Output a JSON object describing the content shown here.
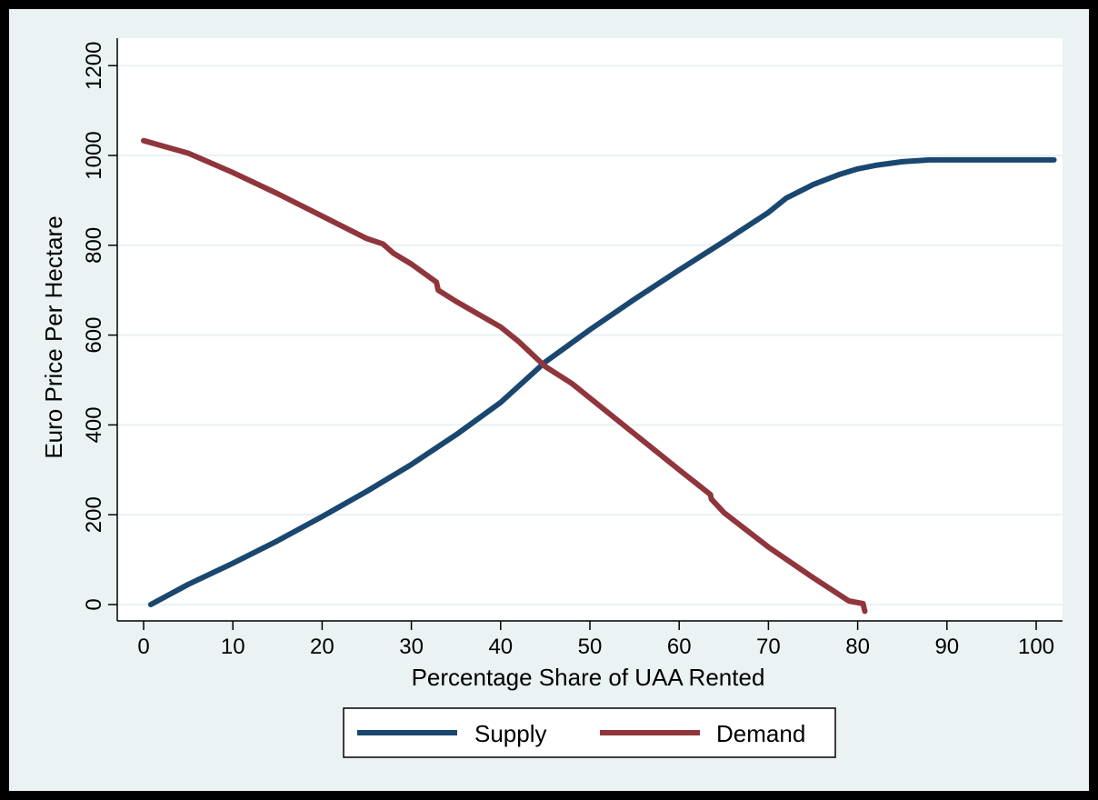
{
  "chart_data": {
    "type": "line",
    "title": "",
    "xlabel": "Percentage Share of UAA Rented",
    "ylabel": "Euro Price Per Hectare",
    "xlim": [
      0,
      102
    ],
    "ylim": [
      0,
      1200
    ],
    "xticks": [
      "0",
      "10",
      "20",
      "30",
      "40",
      "50",
      "60",
      "70",
      "80",
      "90",
      "100"
    ],
    "yticks": [
      "0",
      "200",
      "400",
      "600",
      "800",
      "1000",
      "1200"
    ],
    "grid": "horizontal",
    "legend_position": "bottom",
    "colors": {
      "supply": "#1a476f",
      "demand": "#90353b",
      "plot_bg": "#ffffff",
      "outer_bg": "#eaf2f3",
      "grid": "#eaf2f3"
    },
    "series": [
      {
        "name": "Supply",
        "x": [
          0.8,
          5,
          10,
          15,
          20,
          25,
          30,
          35,
          40,
          45,
          50,
          55,
          60,
          65,
          70,
          72,
          75,
          78,
          80,
          82,
          85,
          88,
          90,
          95,
          100,
          102
        ],
        "y": [
          0,
          45,
          92,
          142,
          196,
          252,
          312,
          378,
          450,
          540,
          612,
          680,
          745,
          808,
          873,
          905,
          935,
          958,
          970,
          978,
          986,
          990,
          990,
          990,
          990,
          990
        ]
      },
      {
        "name": "Demand",
        "x": [
          0,
          5,
          10,
          15,
          20,
          25,
          26.8,
          28,
          30,
          32.8,
          33,
          35,
          40,
          42,
          45,
          48,
          50,
          55,
          60,
          63.5,
          63.6,
          65,
          70,
          75,
          79,
          80.6,
          80.8
        ],
        "y": [
          1033,
          1005,
          962,
          915,
          865,
          815,
          803,
          782,
          758,
          718,
          700,
          675,
          618,
          586,
          530,
          492,
          460,
          380,
          300,
          245,
          235,
          205,
          128,
          60,
          8,
          2,
          -15
        ]
      }
    ]
  }
}
